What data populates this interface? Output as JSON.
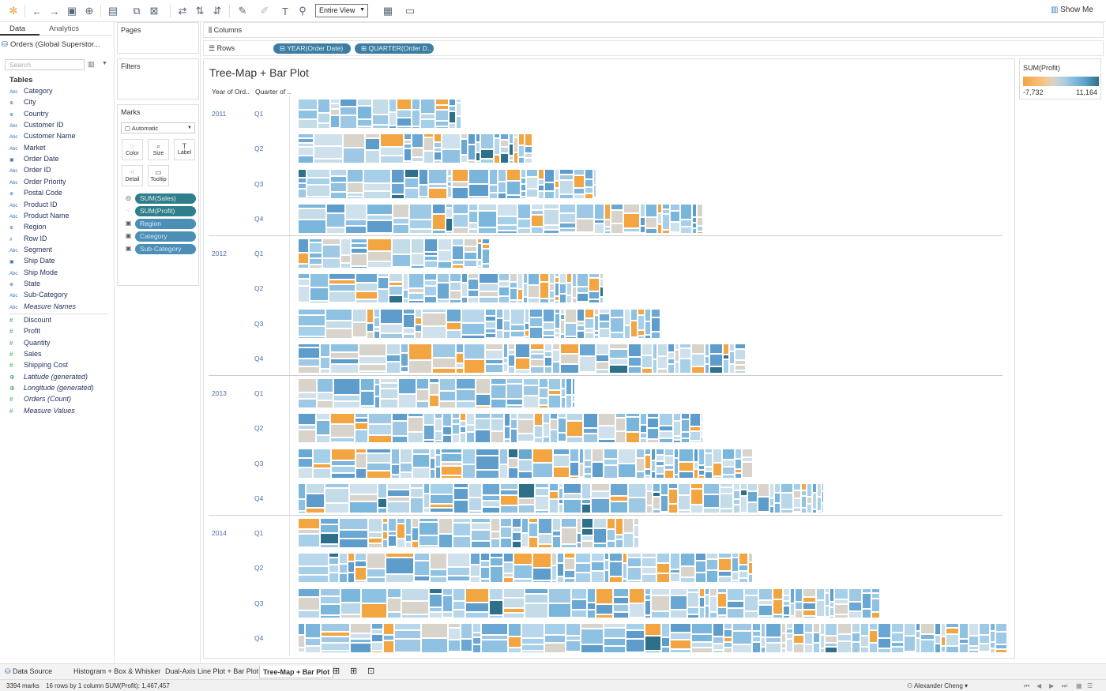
{
  "toolbar": {
    "fit_label": "Entire View",
    "show_me_label": "Show Me",
    "icons": [
      "tableau-logo-icon",
      "undo-icon",
      "redo-icon",
      "save-icon",
      "new-datasource-icon",
      "new-worksheet-icon",
      "duplicate-icon",
      "clear-icon",
      "swap-icon",
      "sort-asc-icon",
      "sort-desc-icon",
      "highlight-icon",
      "group-icon",
      "label-icon",
      "pin-icon",
      "show-cards-icon",
      "presentation-icon"
    ]
  },
  "data_pane": {
    "tab_data": "Data",
    "tab_analytics": "Analytics",
    "datasource": "Orders (Global Superstor...",
    "search_placeholder": "Search",
    "tables_header": "Tables",
    "dimensions": [
      {
        "type": "Abc",
        "name": "Category"
      },
      {
        "type": "geo",
        "name": "City"
      },
      {
        "type": "geo",
        "name": "Country"
      },
      {
        "type": "Abc",
        "name": "Customer ID"
      },
      {
        "type": "Abc",
        "name": "Customer Name"
      },
      {
        "type": "Abc",
        "name": "Market"
      },
      {
        "type": "date",
        "name": "Order Date"
      },
      {
        "type": "Abc",
        "name": "Order ID"
      },
      {
        "type": "Abc",
        "name": "Order Priority"
      },
      {
        "type": "geo",
        "name": "Postal Code"
      },
      {
        "type": "Abc",
        "name": "Product ID"
      },
      {
        "type": "Abc",
        "name": "Product Name"
      },
      {
        "type": "geo",
        "name": "Region"
      },
      {
        "type": "#",
        "name": "Row ID"
      },
      {
        "type": "Abc",
        "name": "Segment"
      },
      {
        "type": "date",
        "name": "Ship Date"
      },
      {
        "type": "Abc",
        "name": "Ship Mode"
      },
      {
        "type": "geo",
        "name": "State"
      },
      {
        "type": "Abc",
        "name": "Sub-Category"
      },
      {
        "type": "Abc",
        "name": "Measure Names",
        "italic": true
      }
    ],
    "measures": [
      {
        "type": "#",
        "name": "Discount"
      },
      {
        "type": "#",
        "name": "Profit"
      },
      {
        "type": "#",
        "name": "Quantity"
      },
      {
        "type": "#",
        "name": "Sales"
      },
      {
        "type": "#",
        "name": "Shipping Cost"
      },
      {
        "type": "geo",
        "name": "Latitude (generated)",
        "italic": true
      },
      {
        "type": "geo",
        "name": "Longitude (generated)",
        "italic": true
      },
      {
        "type": "#",
        "name": "Orders (Count)",
        "italic": true
      },
      {
        "type": "#",
        "name": "Measure Values",
        "italic": true
      }
    ]
  },
  "cards": {
    "pages": "Pages",
    "filters": "Filters",
    "marks": "Marks",
    "mark_type": "Automatic",
    "buttons": [
      "Color",
      "Size",
      "Label",
      "Detail",
      "Tooltip"
    ],
    "mark_pills": [
      "SUM(Sales)",
      "SUM(Profit)",
      "Region",
      "Category",
      "Sub-Category"
    ]
  },
  "shelves": {
    "columns_label": "Columns",
    "rows_label": "Rows",
    "rows_pills": [
      "YEAR(Order Date)",
      "QUARTER(Order D.."
    ]
  },
  "view": {
    "title": "Tree-Map + Bar Plot",
    "col_header_year": "Year of Ord..",
    "col_header_quarter": "Quarter of .."
  },
  "legend": {
    "title": "SUM(Profit)",
    "min": "-7,732",
    "max": "11,164",
    "colors": {
      "negative": "#f3a542",
      "neutral": "#d9d2c8",
      "positive": "#2e6f8a"
    }
  },
  "chart_data": {
    "type": "bar",
    "title": "Tree-Map + Bar Plot",
    "xlabel": "",
    "ylabel": "Year of Order Date / Quarter of Order Date",
    "rows": [
      {
        "year": "2011",
        "quarters": [
          {
            "q": "Q1",
            "sales": 0.23
          },
          {
            "q": "Q2",
            "sales": 0.33
          },
          {
            "q": "Q3",
            "sales": 0.42
          },
          {
            "q": "Q4",
            "sales": 0.57
          }
        ]
      },
      {
        "year": "2012",
        "quarters": [
          {
            "q": "Q1",
            "sales": 0.27
          },
          {
            "q": "Q2",
            "sales": 0.43
          },
          {
            "q": "Q3",
            "sales": 0.51
          },
          {
            "q": "Q4",
            "sales": 0.63
          }
        ]
      },
      {
        "year": "2013",
        "quarters": [
          {
            "q": "Q1",
            "sales": 0.39
          },
          {
            "q": "Q2",
            "sales": 0.57
          },
          {
            "q": "Q3",
            "sales": 0.64
          },
          {
            "q": "Q4",
            "sales": 0.74
          }
        ]
      },
      {
        "year": "2014",
        "quarters": [
          {
            "q": "Q1",
            "sales": 0.48
          },
          {
            "q": "Q2",
            "sales": 0.64
          },
          {
            "q": "Q3",
            "sales": 0.82
          },
          {
            "q": "Q4",
            "sales": 1.0
          }
        ]
      }
    ]
  },
  "sheet_tabs": {
    "data_source": "Data Source",
    "tabs": [
      "Histogram + Box & Whisker",
      "Dual-Axis Line Plot + Bar Plot",
      "Tree-Map + Bar Plot"
    ]
  },
  "status": {
    "marks": "3394 marks",
    "dims": "16 rows by 1 column",
    "sum": "SUM(Profit): 1,467,457",
    "user": "Alexander Cheng"
  }
}
